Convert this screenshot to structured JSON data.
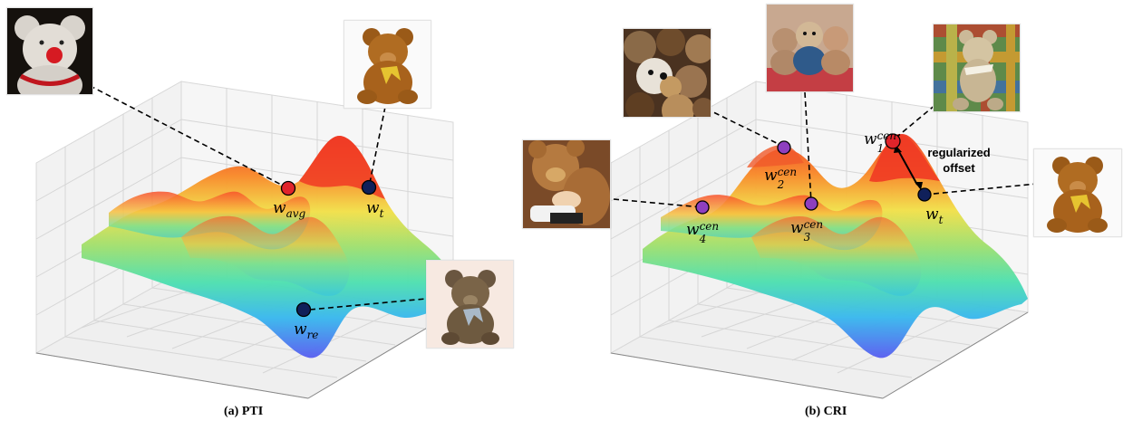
{
  "panels": [
    {
      "caption": "(a) PTI",
      "labels": {
        "w_avg": {
          "base": "w",
          "sub": "avg"
        },
        "w_t": {
          "base": "w",
          "sub": "t"
        },
        "w_re": {
          "base": "w",
          "sub": "re"
        }
      }
    },
    {
      "caption": "(b) CRI",
      "labels": {
        "w1": {
          "base": "w",
          "sub": "1",
          "sup": "cen"
        },
        "w2": {
          "base": "w",
          "sub": "2",
          "sup": "cen"
        },
        "w3": {
          "base": "w",
          "sub": "3",
          "sup": "cen"
        },
        "w4": {
          "base": "w",
          "sub": "4",
          "sup": "cen"
        },
        "w_t": {
          "base": "w",
          "sub": "t"
        }
      },
      "annotation": [
        "regularized",
        "offset"
      ]
    }
  ],
  "colors": {
    "point_red": "#e0242b",
    "point_navy": "#10205a",
    "point_purple": "#8e3fbf",
    "surface_peak": "#f03a24",
    "surface_low": "#4e6ef2"
  }
}
